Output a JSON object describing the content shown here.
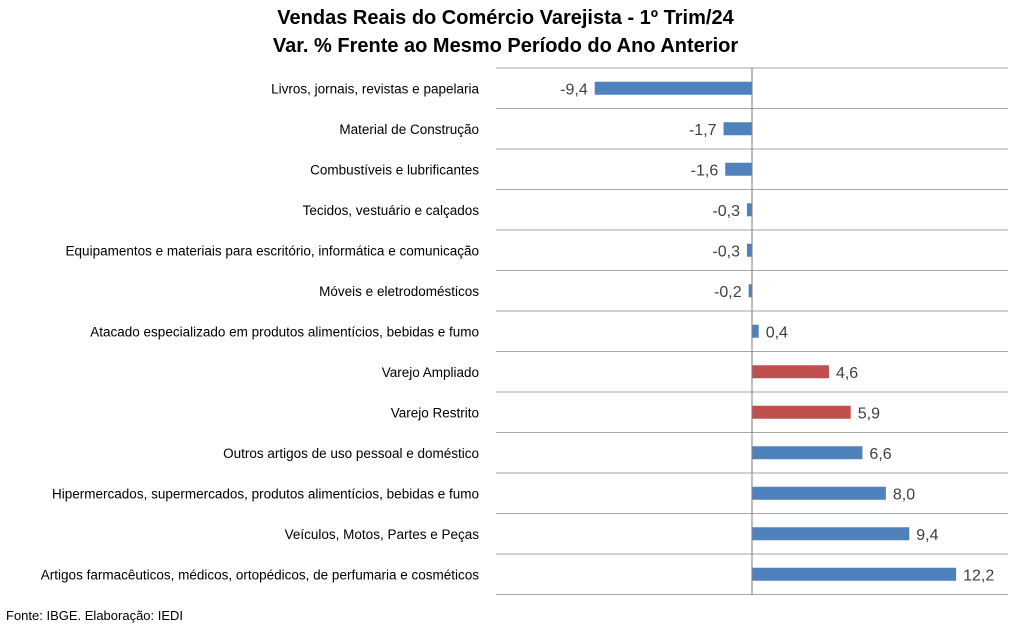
{
  "chart_data": {
    "type": "bar",
    "orientation": "horizontal",
    "title": "Vendas Reais do Comércio Varejista - 1º Trim/24",
    "subtitle": "Var. % Frente ao Mesmo Período do Ano Anterior",
    "categories": [
      "Livros, jornais, revistas e papelaria",
      "Material de Construção",
      "Combustíveis e lubrificantes",
      "Tecidos, vestuário e calçados",
      "Equipamentos e materiais para escritório, informática e comunicação",
      "Móveis e eletrodomésticos",
      "Atacado especializado em produtos alimentícios, bebidas e fumo",
      "Varejo Ampliado",
      "Varejo Restrito",
      "Outros artigos de uso pessoal e doméstico",
      "Hipermercados, supermercados, produtos alimentícios, bebidas e fumo",
      "Veículos, Motos, Partes e Peças",
      "Artigos farmacêuticos, médicos, ortopédicos, de perfumaria e cosméticos"
    ],
    "values": [
      -9.4,
      -1.7,
      -1.6,
      -0.3,
      -0.3,
      -0.2,
      0.4,
      4.6,
      5.9,
      6.6,
      8.0,
      9.4,
      12.2
    ],
    "value_labels": [
      "-9,4",
      "-1,7",
      "-1,6",
      "-0,3",
      "-0,3",
      "-0,2",
      "0,4",
      "4,6",
      "5,9",
      "6,6",
      "8,0",
      "9,4",
      "12,2"
    ],
    "highlighted": [
      false,
      false,
      false,
      false,
      false,
      false,
      false,
      true,
      true,
      false,
      false,
      false,
      false
    ],
    "xlim": [
      -15.3,
      15.3
    ],
    "grid": "horizontal-row-separators",
    "colors": {
      "default": "#4f81bd",
      "highlight": "#c0504d",
      "grid": "#a6a6a6"
    }
  },
  "footer": {
    "source": "Fonte: IBGE. Elaboração: IEDI"
  }
}
